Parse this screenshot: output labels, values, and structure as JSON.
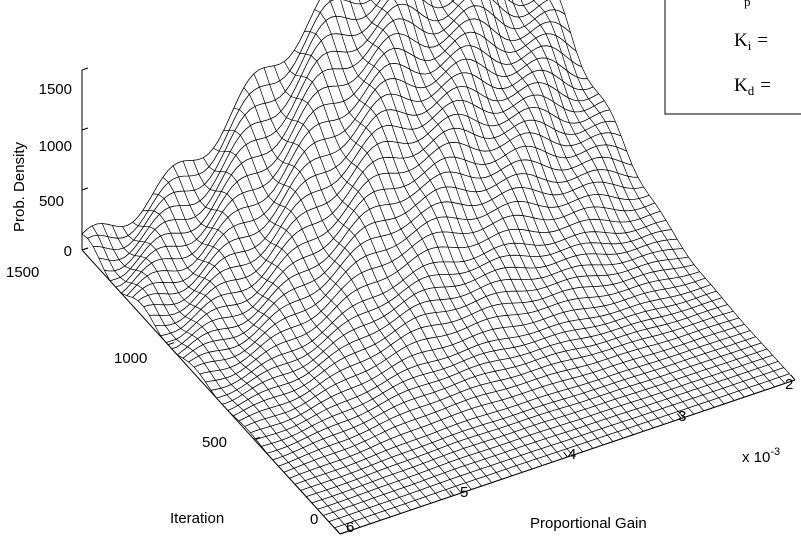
{
  "chart_data": {
    "type": "surface",
    "xlabel": "Proportional Gain",
    "ylabel": "Iteration",
    "zlabel": "Prob. Density",
    "x_ticks": [
      "2",
      "3",
      "4",
      "5",
      "6"
    ],
    "x_multiplier": "x 10",
    "x_multiplier_exp": "-3",
    "y_ticks": [
      "0",
      "500",
      "1000",
      "1500"
    ],
    "z_ticks": [
      "0",
      "500",
      "1000",
      "1500"
    ],
    "xlim": [
      0.002,
      0.006
    ],
    "ylim": [
      0,
      1500
    ],
    "zlim": [
      0,
      1500
    ],
    "grid": false,
    "legend": {
      "placement": "top-right",
      "entries": [
        {
          "symbol": "K",
          "subscript": "p",
          "text": ""
        },
        {
          "symbol": "K",
          "subscript": "i",
          "text": "="
        },
        {
          "symbol": "K",
          "subscript": "d",
          "text": "="
        }
      ]
    },
    "series": [
      {
        "iteration": 0,
        "peak_gain": 0.0047,
        "peak_density": 0
      },
      {
        "iteration": 250,
        "peak_gain": 0.0046,
        "peak_density": 40
      },
      {
        "iteration": 500,
        "peak_gain": 0.0044,
        "peak_density": 180
      },
      {
        "iteration": 750,
        "peak_gain": 0.0041,
        "peak_density": 420
      },
      {
        "iteration": 1000,
        "peak_gain": 0.0038,
        "peak_density": 800
      },
      {
        "iteration": 1250,
        "peak_gain": 0.0036,
        "peak_density": 1150
      },
      {
        "iteration": 1500,
        "peak_gain": 0.0034,
        "peak_density": 1500
      }
    ]
  }
}
